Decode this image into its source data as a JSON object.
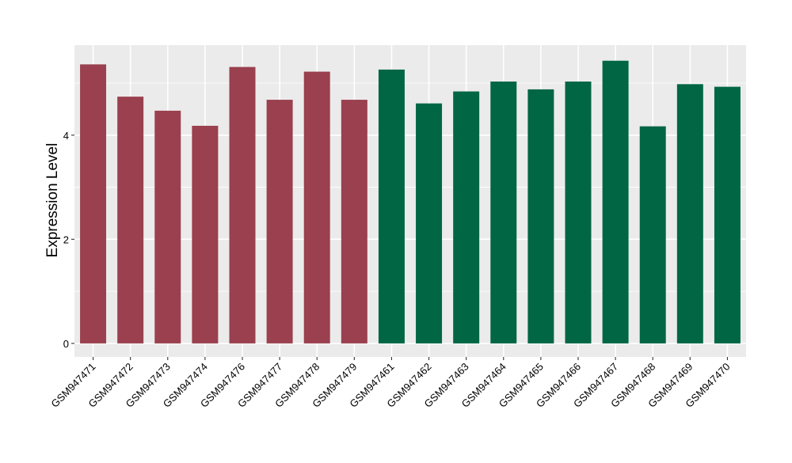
{
  "chart_data": {
    "type": "bar",
    "title": "",
    "xlabel": "",
    "ylabel": "Expression Level",
    "ylim": [
      -0.26,
      5.73
    ],
    "yticks": [
      0,
      2,
      4
    ],
    "grid": true,
    "legend": "none",
    "categories": [
      "GSM947471",
      "GSM947472",
      "GSM947473",
      "GSM947474",
      "GSM947476",
      "GSM947477",
      "GSM947478",
      "GSM947479",
      "GSM947461",
      "GSM947462",
      "GSM947463",
      "GSM947464",
      "GSM947465",
      "GSM947466",
      "GSM947467",
      "GSM947468",
      "GSM947469",
      "GSM947470"
    ],
    "values": [
      5.36,
      4.74,
      4.47,
      4.18,
      5.31,
      4.68,
      5.22,
      4.68,
      5.26,
      4.61,
      4.84,
      5.03,
      4.88,
      5.03,
      5.43,
      4.17,
      4.98,
      4.93
    ],
    "bar_colors": [
      "#9a404e",
      "#9a404e",
      "#9a404e",
      "#9a404e",
      "#9a404e",
      "#9a404e",
      "#9a404e",
      "#9a404e",
      "#016644",
      "#016644",
      "#016644",
      "#016644",
      "#016644",
      "#016644",
      "#016644",
      "#016644",
      "#016644",
      "#016644"
    ],
    "panel_background": "#ebebeb",
    "grid_color": "#ffffff"
  }
}
